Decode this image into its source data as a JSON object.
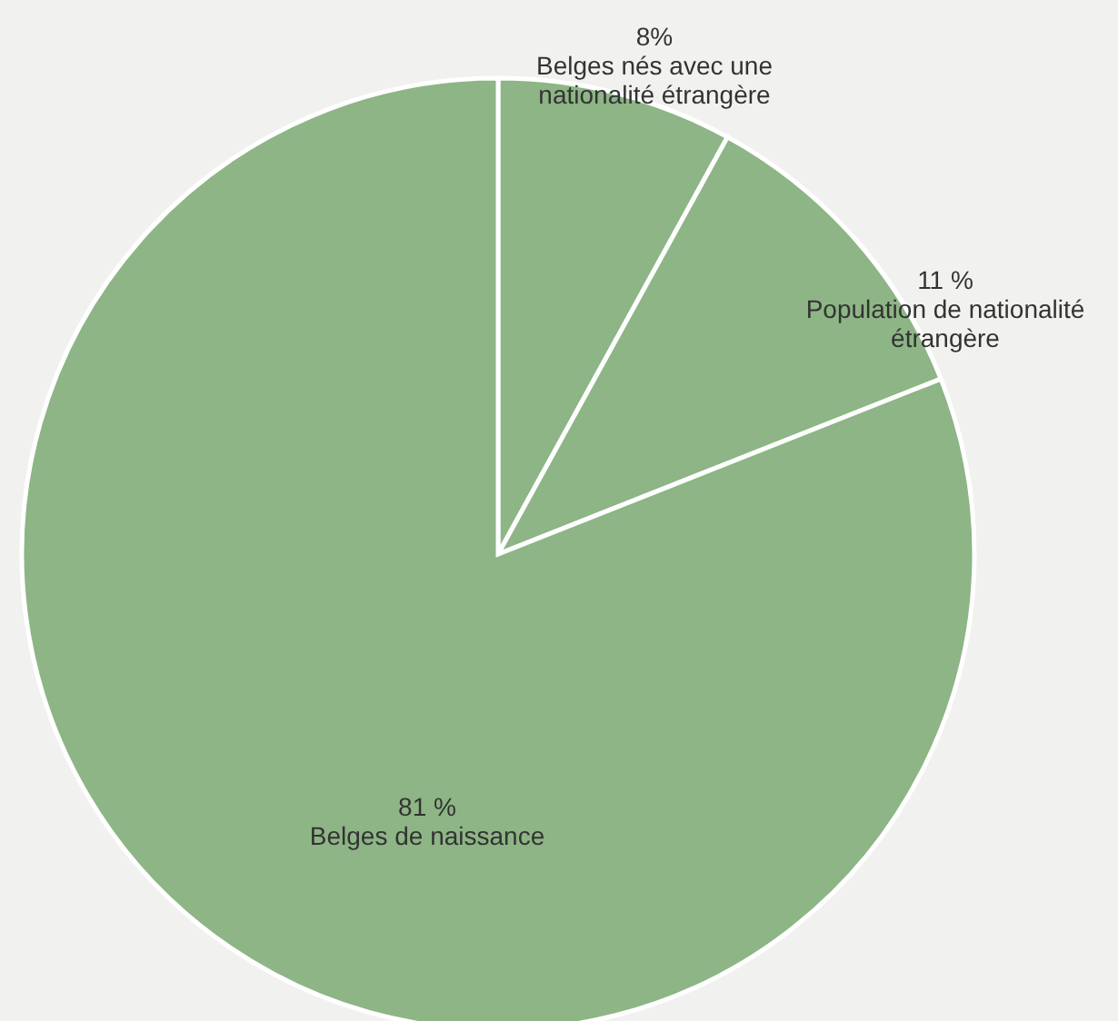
{
  "chart_data": {
    "type": "pie",
    "categories": [
      "Belges nés avec une nationalité étrangère",
      "Population de nationalité étrangère",
      "Belges de naissance"
    ],
    "values": [
      8,
      11,
      81
    ],
    "colors": [
      "#8db585",
      "#8db585",
      "#8db585"
    ],
    "value_labels": [
      "8%",
      "11 %",
      "81 %"
    ]
  }
}
